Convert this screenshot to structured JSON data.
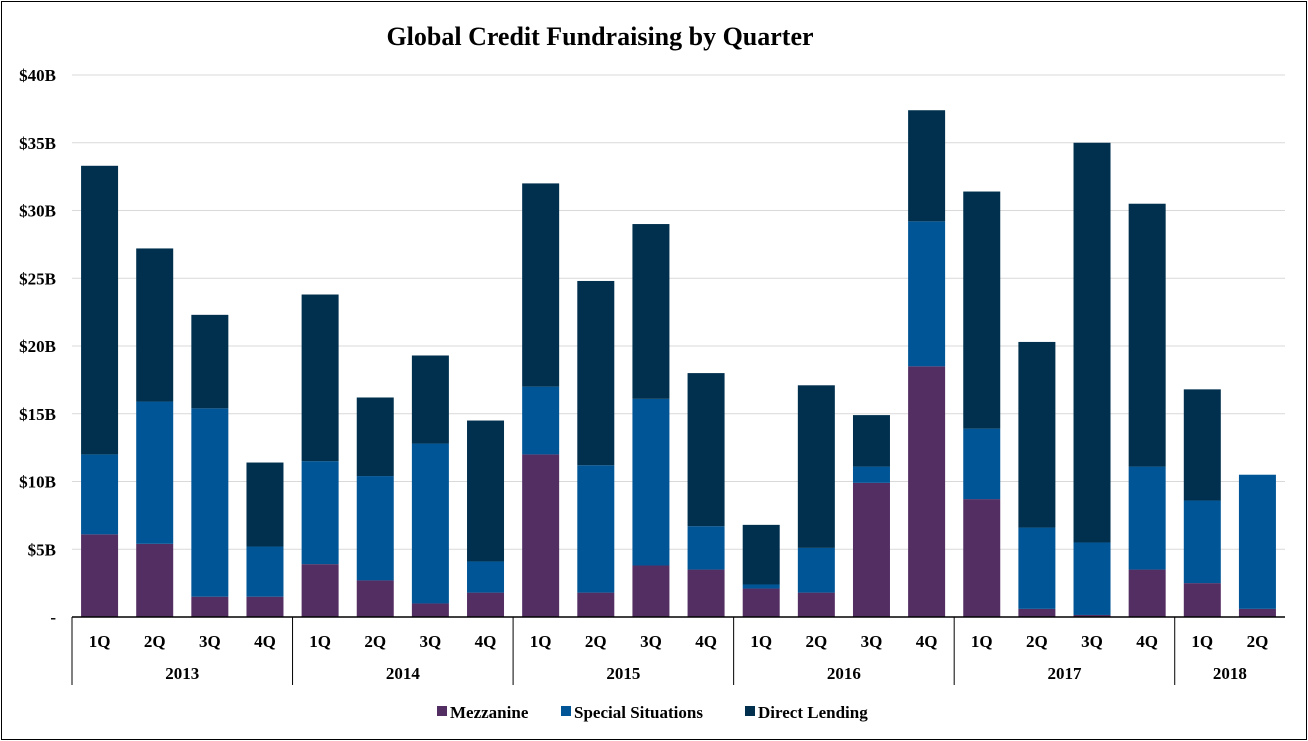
{
  "chart_data": {
    "type": "bar",
    "stacked": true,
    "title": "Global Credit Fundraising by Quarter",
    "xlabel": "",
    "ylabel": "",
    "ylim": [
      0,
      40
    ],
    "y_unit": "$B",
    "y_ticks": [
      "-",
      "$5B",
      "$10B",
      "$15B",
      "$20B",
      "$25B",
      "$30B",
      "$35B",
      "$40B"
    ],
    "y_tick_values": [
      0,
      5,
      10,
      15,
      20,
      25,
      30,
      35,
      40
    ],
    "grid": true,
    "legend_position": "bottom",
    "years": [
      {
        "label": "2013",
        "quarters": [
          "1Q",
          "2Q",
          "3Q",
          "4Q"
        ]
      },
      {
        "label": "2014",
        "quarters": [
          "1Q",
          "2Q",
          "3Q",
          "4Q"
        ]
      },
      {
        "label": "2015",
        "quarters": [
          "1Q",
          "2Q",
          "3Q",
          "4Q"
        ]
      },
      {
        "label": "2016",
        "quarters": [
          "1Q",
          "2Q",
          "3Q",
          "4Q"
        ]
      },
      {
        "label": "2017",
        "quarters": [
          "1Q",
          "2Q",
          "3Q",
          "4Q"
        ]
      },
      {
        "label": "2018",
        "quarters": [
          "1Q",
          "2Q"
        ]
      }
    ],
    "series": [
      {
        "name": "Mezzanine",
        "color": "#532e63",
        "values": [
          6.1,
          5.4,
          1.5,
          1.5,
          3.9,
          2.7,
          1.0,
          1.8,
          12.0,
          1.8,
          3.8,
          3.5,
          2.1,
          1.8,
          9.9,
          18.5,
          8.7,
          0.6,
          0.15,
          3.5,
          2.5,
          0.6
        ]
      },
      {
        "name": "Special Situations",
        "color": "#005596",
        "values": [
          5.9,
          10.5,
          13.9,
          3.7,
          7.6,
          7.7,
          11.8,
          2.3,
          5.0,
          9.4,
          12.3,
          3.2,
          0.3,
          3.3,
          1.2,
          10.7,
          5.2,
          6.0,
          5.35,
          7.6,
          6.1,
          9.9
        ]
      },
      {
        "name": "Direct Lending",
        "color": "#00304e",
        "values": [
          21.3,
          11.3,
          6.9,
          6.2,
          12.3,
          5.8,
          6.5,
          10.4,
          15.0,
          13.6,
          12.9,
          11.3,
          4.4,
          12.0,
          3.8,
          8.2,
          17.5,
          13.7,
          29.5,
          19.4,
          8.2,
          0
        ]
      }
    ]
  }
}
